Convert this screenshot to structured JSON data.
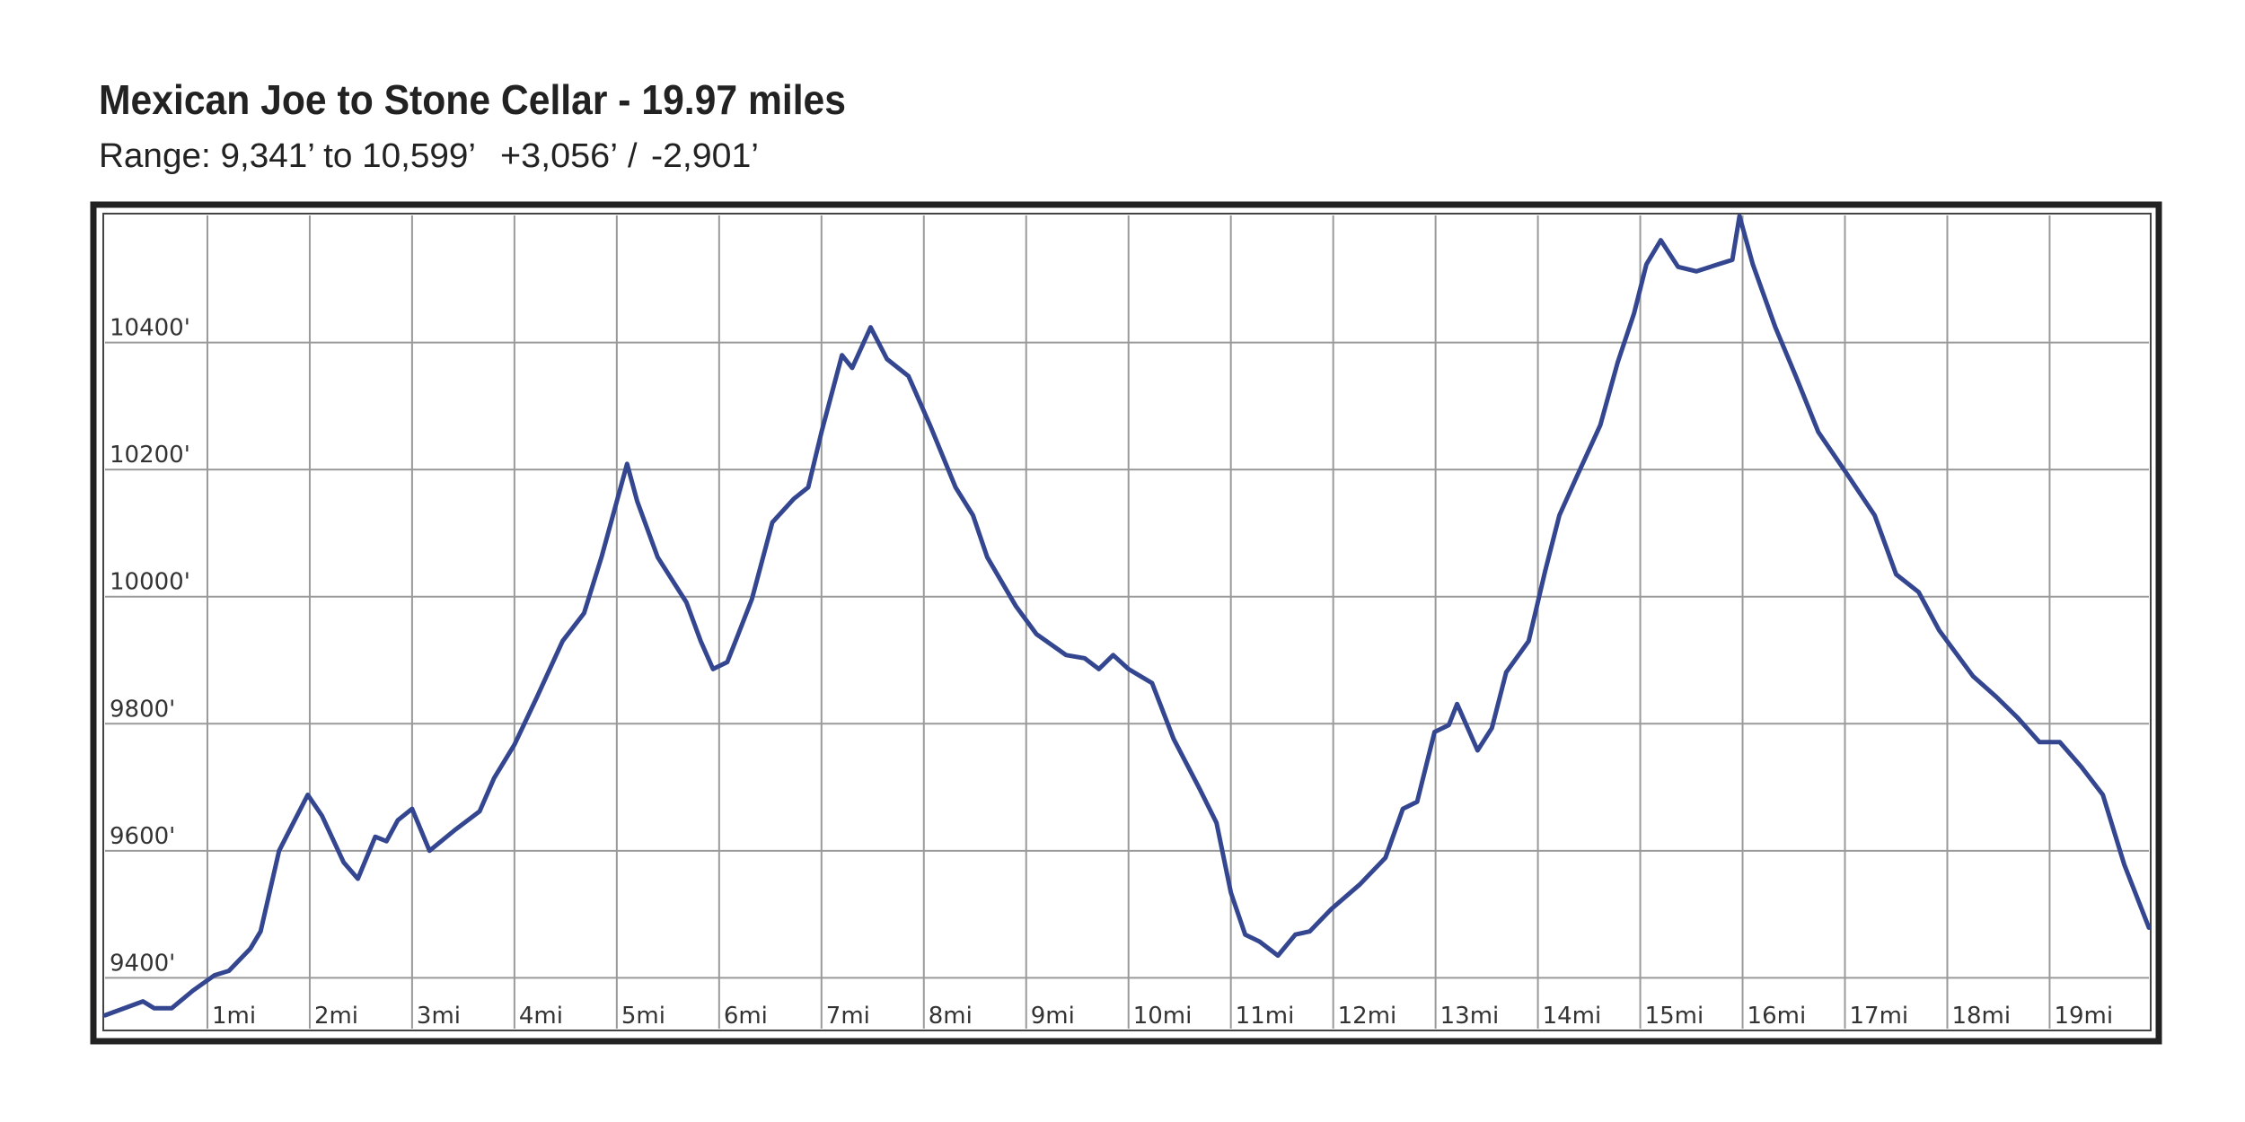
{
  "chart_data": {
    "type": "line",
    "title": "Mexican Joe to Stone Cellar - 19.97 miles",
    "subtitle": "Range: 9,341’ to 10,599’",
    "gain": "+3,056’",
    "separator": "/",
    "loss": "-2,901’",
    "gain_color": "#2e8b3a",
    "loss_color": "#c0262d",
    "color": "#33468f",
    "grid": true,
    "xlim": [
      0,
      19.97
    ],
    "ylim": [
      9320,
      10600
    ],
    "xticks": [
      {
        "value": 1,
        "label": "1mi"
      },
      {
        "value": 2,
        "label": "2mi"
      },
      {
        "value": 3,
        "label": "3mi"
      },
      {
        "value": 4,
        "label": "4mi"
      },
      {
        "value": 5,
        "label": "5mi"
      },
      {
        "value": 6,
        "label": "6mi"
      },
      {
        "value": 7,
        "label": "7mi"
      },
      {
        "value": 8,
        "label": "8mi"
      },
      {
        "value": 9,
        "label": "9mi"
      },
      {
        "value": 10,
        "label": "10mi"
      },
      {
        "value": 11,
        "label": "11mi"
      },
      {
        "value": 12,
        "label": "12mi"
      },
      {
        "value": 13,
        "label": "13mi"
      },
      {
        "value": 14,
        "label": "14mi"
      },
      {
        "value": 15,
        "label": "15mi"
      },
      {
        "value": 16,
        "label": "16mi"
      },
      {
        "value": 17,
        "label": "17mi"
      },
      {
        "value": 18,
        "label": "18mi"
      },
      {
        "value": 19,
        "label": "19mi"
      }
    ],
    "yticks": [
      {
        "value": 9400,
        "label": "9400'"
      },
      {
        "value": 9600,
        "label": "9600'"
      },
      {
        "value": 9800,
        "label": "9800'"
      },
      {
        "value": 10000,
        "label": "10000'"
      },
      {
        "value": 10200,
        "label": "10200'"
      },
      {
        "value": 10400,
        "label": "10400'"
      }
    ],
    "x": [
      0,
      0.37,
      0.48,
      0.65,
      0.86,
      1.07,
      1.21,
      1.42,
      1.52,
      1.7,
      1.84,
      1.98,
      2.12,
      2.33,
      2.47,
      2.64,
      2.75,
      2.86,
      3.0,
      3.17,
      3.42,
      3.66,
      3.8,
      4.0,
      4.22,
      4.47,
      4.68,
      4.85,
      5.1,
      5.2,
      5.4,
      5.68,
      5.82,
      5.94,
      6.08,
      6.17,
      6.32,
      6.52,
      6.73,
      6.87,
      7.0,
      7.2,
      7.3,
      7.48,
      7.64,
      7.85,
      8.06,
      8.31,
      8.48,
      8.62,
      8.9,
      9.1,
      9.39,
      9.57,
      9.71,
      9.85,
      10.0,
      10.23,
      10.44,
      10.69,
      10.86,
      11.0,
      11.14,
      11.28,
      11.46,
      11.63,
      11.77,
      11.98,
      12.26,
      12.51,
      12.68,
      12.82,
      12.99,
      13.13,
      13.21,
      13.41,
      13.55,
      13.69,
      13.91,
      14.07,
      14.21,
      14.38,
      14.61,
      14.78,
      14.94,
      15.06,
      15.2,
      15.37,
      15.55,
      15.76,
      15.9,
      15.97,
      16.1,
      16.32,
      16.52,
      16.74,
      17.02,
      17.29,
      17.5,
      17.72,
      17.92,
      18.25,
      18.48,
      18.69,
      18.9,
      19.1,
      19.31,
      19.52,
      19.73,
      19.97
    ],
    "values": [
      9341,
      9363,
      9352,
      9352,
      9380,
      9404,
      9411,
      9446,
      9473,
      9600,
      9644,
      9688,
      9655,
      9582,
      9556,
      9622,
      9615,
      9648,
      9666,
      9600,
      9633,
      9662,
      9714,
      9767,
      9842,
      9930,
      9974,
      10062,
      10209,
      10150,
      10062,
      9991,
      9930,
      9886,
      9897,
      9934,
      9996,
      10117,
      10154,
      10172,
      10259,
      10380,
      10360,
      10424,
      10374,
      10347,
      10270,
      10172,
      10128,
      10062,
      9985,
      9941,
      9908,
      9903,
      9886,
      9908,
      9886,
      9864,
      9776,
      9699,
      9644,
      9534,
      9468,
      9457,
      9435,
      9468,
      9473,
      9508,
      9547,
      9589,
      9666,
      9677,
      9787,
      9798,
      9831,
      9758,
      9793,
      9881,
      9930,
      10040,
      10128,
      10189,
      10270,
      10369,
      10446,
      10523,
      10561,
      10519,
      10512,
      10523,
      10530,
      10599,
      10523,
      10424,
      10347,
      10259,
      10193,
      10128,
      10035,
      10007,
      9947,
      9875,
      9842,
      9809,
      9771,
      9771,
      9732,
      9688,
      9578,
      9479
    ]
  }
}
